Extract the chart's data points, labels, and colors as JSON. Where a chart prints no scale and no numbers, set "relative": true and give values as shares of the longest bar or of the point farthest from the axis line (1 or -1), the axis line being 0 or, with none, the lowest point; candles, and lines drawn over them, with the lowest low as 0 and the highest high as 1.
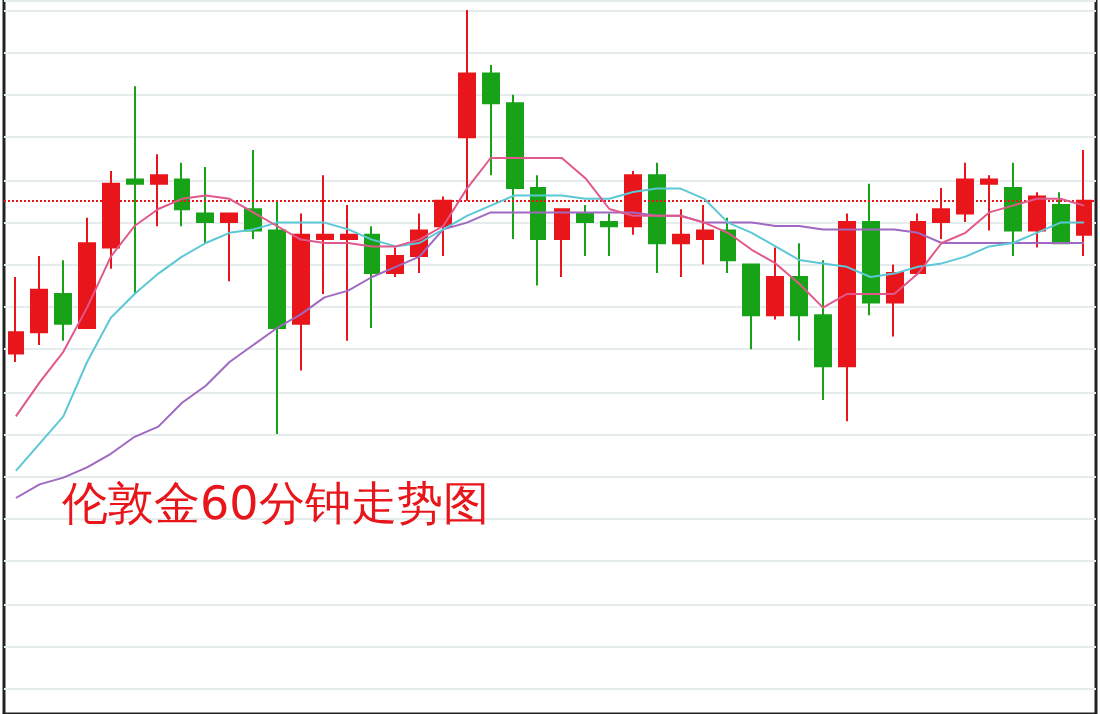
{
  "chart_data": [
    {
      "type": "line",
      "relative": true,
      "marker": "none",
      "line_style": "solid",
      "categories": [
        null,
        null,
        null,
        null,
        null,
        null,
        null,
        null,
        null,
        null,
        null,
        null,
        null,
        null,
        null,
        null,
        null,
        null,
        null,
        null,
        null,
        null,
        null,
        null,
        null,
        null,
        null,
        null,
        null,
        null,
        null,
        null,
        null,
        null,
        null,
        null,
        null,
        null,
        null,
        null,
        null,
        null,
        null,
        null,
        null,
        null
      ],
      "series": [
        {
          "color": "#e0588c",
          "values": [
            0.24,
            0.34,
            0.43,
            0.56,
            0.71,
            0.8,
            0.85,
            0.88,
            0.89,
            0.88,
            0.84,
            0.8,
            0.76,
            0.75,
            0.75,
            0.74,
            0.74,
            0.76,
            0.8,
            0.91,
            1,
            1,
            1,
            1,
            0.94,
            0.85,
            0.83,
            0.83,
            0.83,
            0.81,
            0.78,
            0.73,
            0.69,
            0.63,
            0.56,
            0.6,
            0.6,
            0.6,
            0.66,
            0.75,
            0.78,
            0.84,
            0.86,
            0.88,
            0.88,
            0.86
          ]
        },
        {
          "color": "#5cc8d6",
          "values": [
            0.08,
            0.16,
            0.24,
            0.4,
            0.53,
            0.6,
            0.66,
            0.71,
            0.75,
            0.78,
            0.79,
            0.81,
            0.81,
            0.81,
            0.79,
            0.76,
            0.74,
            0.75,
            0.79,
            0.83,
            0.86,
            0.89,
            0.89,
            0.89,
            0.88,
            0.88,
            0.9,
            0.91,
            0.91,
            0.88,
            0.81,
            0.78,
            0.74,
            0.7,
            0.69,
            0.68,
            0.65,
            0.66,
            0.68,
            0.69,
            0.71,
            0.74,
            0.75,
            0.78,
            0.81,
            0.81
          ]
        },
        {
          "color": "#a068c0",
          "values": [
            0,
            0.04,
            0.06,
            0.09,
            0.13,
            0.18,
            0.21,
            0.28,
            0.33,
            0.4,
            0.45,
            0.5,
            0.54,
            0.59,
            0.61,
            0.65,
            0.68,
            0.71,
            0.79,
            0.81,
            0.84,
            0.84,
            0.84,
            0.84,
            0.84,
            0.84,
            0.84,
            0.83,
            0.83,
            0.81,
            0.81,
            0.81,
            0.8,
            0.8,
            0.79,
            0.79,
            0.79,
            0.79,
            0.78,
            0.75,
            0.75,
            0.75,
            0.75,
            0.75,
            0.75,
            0.75
          ]
        }
      ]
    },
    {
      "type": "candlestick",
      "title": "伦敦金60分钟走势图",
      "relative": true,
      "grid": "y",
      "categories": [
        null,
        null,
        null,
        null,
        null,
        null,
        null,
        null,
        null,
        null,
        null,
        null,
        null,
        null,
        null,
        null,
        null,
        null,
        null,
        null,
        null,
        null,
        null,
        null,
        null,
        null,
        null,
        null,
        null,
        null,
        null,
        null,
        null,
        null,
        null,
        null,
        null,
        null,
        null,
        null,
        null,
        null,
        null,
        null,
        null,
        null
      ],
      "ohlc": [
        [
          0.19,
          0.37,
          0.17,
          0.24
        ],
        [
          0.24,
          0.42,
          0.21,
          0.34
        ],
        [
          0.33,
          0.41,
          0.22,
          0.26
        ],
        [
          0.25,
          0.51,
          0.25,
          0.45
        ],
        [
          0.44,
          0.62,
          0.39,
          0.59
        ],
        [
          0.6,
          0.82,
          0.33,
          0.59
        ],
        [
          0.59,
          0.66,
          0.49,
          0.61
        ],
        [
          0.6,
          0.64,
          0.49,
          0.53
        ],
        [
          0.52,
          0.63,
          0.45,
          0.5
        ],
        [
          0.5,
          0.52,
          0.36,
          0.52
        ],
        [
          0.53,
          0.67,
          0.46,
          0.48
        ],
        [
          0.48,
          0.55,
          0,
          0.25
        ],
        [
          0.26,
          0.52,
          0.15,
          0.47
        ],
        [
          0.46,
          0.61,
          0.33,
          0.47
        ],
        [
          0.46,
          0.54,
          0.22,
          0.47
        ],
        [
          0.47,
          0.49,
          0.25,
          0.38
        ],
        [
          0.38,
          0.44,
          0.37,
          0.42
        ],
        [
          0.42,
          0.52,
          0.38,
          0.48
        ],
        [
          0.49,
          0.56,
          0.42,
          0.55
        ],
        [
          0.7,
          1,
          0.55,
          0.85
        ],
        [
          0.85,
          0.87,
          0.61,
          0.78
        ],
        [
          0.78,
          0.8,
          0.46,
          0.58
        ],
        [
          0.58,
          0.61,
          0.35,
          0.46
        ],
        [
          0.46,
          0.53,
          0.37,
          0.53
        ],
        [
          0.52,
          0.54,
          0.42,
          0.5
        ],
        [
          0.5,
          0.52,
          0.42,
          0.49
        ],
        [
          0.49,
          0.62,
          0.47,
          0.61
        ],
        [
          0.61,
          0.64,
          0.38,
          0.45
        ],
        [
          0.45,
          0.53,
          0.37,
          0.47
        ],
        [
          0.46,
          0.54,
          0.4,
          0.48
        ],
        [
          0.48,
          0.51,
          0.38,
          0.41
        ],
        [
          0.4,
          0.4,
          0.2,
          0.28
        ],
        [
          0.28,
          0.44,
          0.27,
          0.37
        ],
        [
          0.37,
          0.45,
          0.22,
          0.28
        ],
        [
          0.28,
          0.41,
          0.08,
          0.16
        ],
        [
          0.16,
          0.52,
          0.03,
          0.5
        ],
        [
          0.5,
          0.59,
          0.28,
          0.31
        ],
        [
          0.31,
          0.4,
          0.23,
          0.38
        ],
        [
          0.38,
          0.52,
          0.38,
          0.5
        ],
        [
          0.5,
          0.58,
          0.46,
          0.53
        ],
        [
          0.52,
          0.64,
          0.5,
          0.6
        ],
        [
          0.59,
          0.61,
          0.48,
          0.6
        ],
        [
          0.58,
          0.64,
          0.42,
          0.48
        ],
        [
          0.48,
          0.57,
          0.44,
          0.56
        ],
        [
          0.54,
          0.57,
          0.45,
          0.45
        ],
        [
          0.47,
          0.67,
          0.42,
          0.55
        ]
      ],
      "colors": [
        "#e8161b",
        "#e8161b",
        "#17a217",
        "#e8161b",
        "#e8161b",
        "#17a217",
        "#e8161b",
        "#17a217",
        "#17a217",
        "#e8161b",
        "#17a217",
        "#17a217",
        "#e8161b",
        "#e8161b",
        "#e8161b",
        "#17a217",
        "#e8161b",
        "#e8161b",
        "#e8161b",
        "#e8161b",
        "#17a217",
        "#17a217",
        "#17a217",
        "#e8161b",
        "#17a217",
        "#17a217",
        "#e8161b",
        "#17a217",
        "#e8161b",
        "#e8161b",
        "#17a217",
        "#17a217",
        "#e8161b",
        "#17a217",
        "#17a217",
        "#e8161b",
        "#17a217",
        "#e8161b",
        "#e8161b",
        "#e8161b",
        "#e8161b",
        "#e8161b",
        "#17a217",
        "#e8161b",
        "#17a217",
        "#e8161b"
      ],
      "ref_lines": [
        {
          "axis": "y",
          "value": 0.55,
          "color": "#e8161b",
          "line_style": "dotted"
        }
      ]
    }
  ]
}
